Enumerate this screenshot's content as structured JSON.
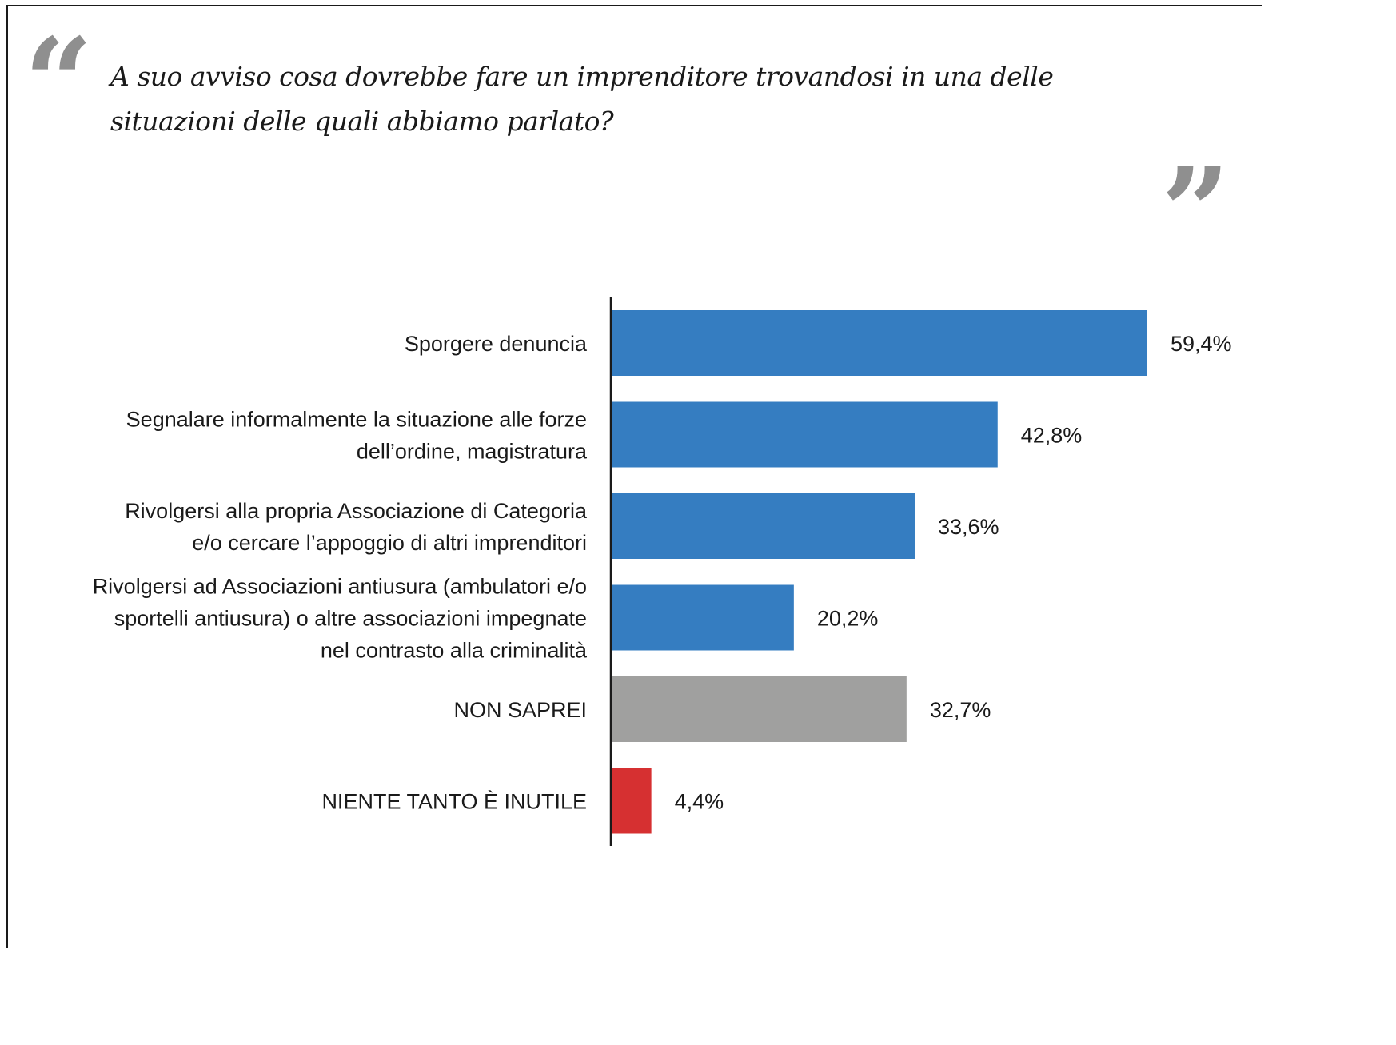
{
  "question": "A suo avviso cosa dovrebbe fare un imprenditore trovandosi in una delle situazioni delle quali abbiamo parlato?",
  "icons": {
    "open_quote": "open-quote-icon",
    "close_quote": "close-quote-icon"
  },
  "colors": {
    "primary": "#357dc1",
    "neutral": "#a0a09f",
    "negative": "#d63031",
    "quote": "#8f8f8f"
  },
  "chart_data": {
    "type": "bar",
    "orientation": "horizontal",
    "categories": [
      [
        "Sporgere denuncia"
      ],
      [
        "Segnalare informalmente la situazione alle forze",
        "dell’ordine, magistratura"
      ],
      [
        "Rivolgersi alla propria Associazione di Categoria",
        "e/o cercare l’appoggio di altri imprenditori"
      ],
      [
        "Rivolgersi ad Associazioni antiusura (ambulatori e/o",
        "sportelli antiusura) o altre associazioni impegnate",
        "nel contrasto alla criminalità"
      ],
      [
        "NON SAPREI"
      ],
      [
        "NIENTE TANTO È INUTILE"
      ]
    ],
    "values": [
      59.4,
      42.8,
      33.6,
      20.2,
      32.7,
      4.4
    ],
    "value_labels": [
      "59,4%",
      "42,8%",
      "33,6%",
      "20,2%",
      "32,7%",
      "4,4%"
    ],
    "bar_colors": [
      "#357dc1",
      "#357dc1",
      "#357dc1",
      "#357dc1",
      "#a0a09f",
      "#d63031"
    ],
    "unit": "%",
    "xlim": [
      0,
      59.4
    ],
    "grid": false,
    "legend": "none"
  }
}
